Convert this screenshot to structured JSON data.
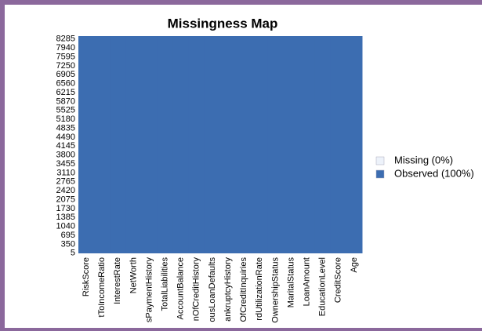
{
  "chart_data": {
    "type": "missingness",
    "title": "Missingness Map",
    "categories": [
      "RiskScore",
      "tToIncomeRatio",
      "InterestRate",
      "NetWorth",
      "sPaymentHistory",
      "TotalLiabilities",
      "AccountBalance",
      "nOfCreditHistory",
      "ousLoanDefaults",
      "ankruptcyHistory",
      "OfCreditInquiries",
      "rdUtilizationRate",
      "OwnershipStatus",
      "MaritalStatus",
      "LoanAmount",
      "EducationLevel",
      "CreditScore",
      "Age"
    ],
    "series": [
      {
        "name": "Missing (0%)",
        "color": "#edf2fa",
        "values": [
          0,
          0,
          0,
          0,
          0,
          0,
          0,
          0,
          0,
          0,
          0,
          0,
          0,
          0,
          0,
          0,
          0,
          0
        ]
      },
      {
        "name": "Observed (100%)",
        "color": "#3c6db1",
        "values": [
          100,
          100,
          100,
          100,
          100,
          100,
          100,
          100,
          100,
          100,
          100,
          100,
          100,
          100,
          100,
          100,
          100,
          100
        ]
      }
    ],
    "ylim": [
      0,
      8400
    ],
    "yticks": [
      5,
      350,
      695,
      1040,
      1385,
      1730,
      2075,
      2420,
      2765,
      3110,
      3455,
      3800,
      4145,
      4490,
      4835,
      5180,
      5525,
      5870,
      6215,
      6560,
      6905,
      7250,
      7595,
      7940,
      8285
    ]
  }
}
